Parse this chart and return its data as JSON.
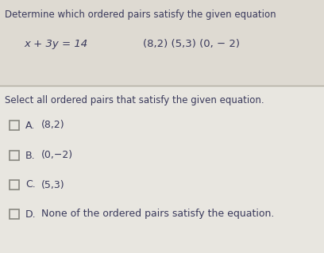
{
  "background_color": "#e8e6e0",
  "top_section_bg": "#dedad2",
  "bottom_section_bg": "#e8e6e0",
  "title_text": "Determine which ordered pairs satisfy the given equation",
  "equation_text": "x + 3y = 14",
  "pairs_text": "(8,2) (5,3) (0, − 2)",
  "instruction_text": "Select all ordered pairs that satisfy the given equation.",
  "options": [
    {
      "label": "A.",
      "text": "(8,2)"
    },
    {
      "label": "B.",
      "text": "(0,−2)"
    },
    {
      "label": "C.",
      "text": "(5,3)"
    },
    {
      "label": "D.",
      "text": "None of the ordered pairs satisfy the equation."
    }
  ],
  "text_color": "#3a3a5c",
  "title_fontsize": 8.5,
  "equation_fontsize": 9.5,
  "pairs_fontsize": 9.5,
  "instruction_fontsize": 8.5,
  "option_label_fontsize": 9.0,
  "option_text_fontsize": 9.0,
  "divider_color": "#b0aca0",
  "checkbox_edge_color": "#888880",
  "checkbox_face_color": "#e8e6e0"
}
